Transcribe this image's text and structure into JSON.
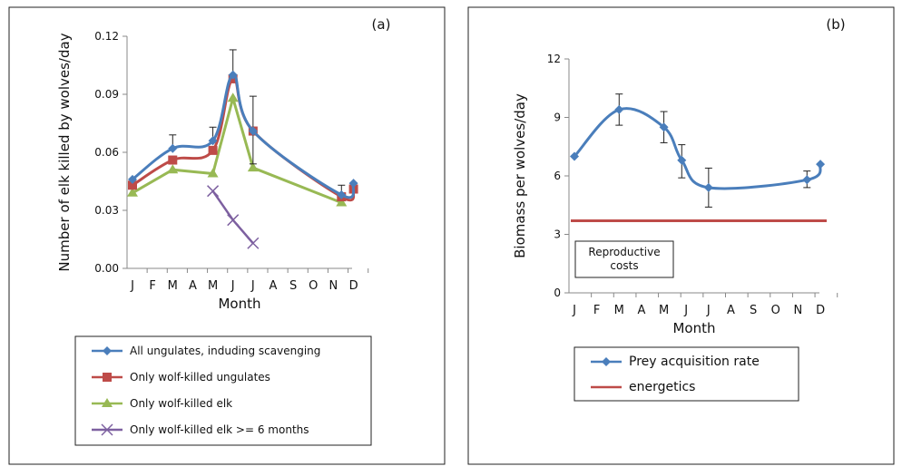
{
  "chart_data": [
    {
      "type": "line",
      "panel_label": "(a)",
      "xlabel": "Month",
      "ylabel": "Number of elk killed by wolves/day",
      "x_tick_labels": [
        "J",
        "F",
        "M",
        "A",
        "M",
        "J",
        "J",
        "A",
        "S",
        "O",
        "N",
        "D"
      ],
      "y_ticks": [
        "0.00",
        "0.03",
        "0.06",
        "0.09",
        "0.12"
      ],
      "ylim": [
        0,
        0.12
      ],
      "legend_position": "bottom",
      "series": [
        {
          "name": "All ungulates, induding scavenging",
          "color": "#4a7ebb",
          "marker": "diamond",
          "smooth": true,
          "x": [
            1,
            3,
            5,
            6,
            7,
            11.4,
            12
          ],
          "y": [
            0.046,
            0.062,
            0.066,
            0.1,
            0.071,
            0.038,
            0.044
          ],
          "error_upper": [
            null,
            0.069,
            0.073,
            0.113,
            0.089,
            0.043,
            null
          ],
          "error_lower": [
            null,
            null,
            null,
            null,
            0.054,
            null,
            null
          ]
        },
        {
          "name": "Only wolf-killed ungulates",
          "color": "#be4b48",
          "marker": "square",
          "smooth": true,
          "x": [
            1,
            3,
            5,
            6,
            7,
            11.4,
            12
          ],
          "y": [
            0.043,
            0.056,
            0.061,
            0.098,
            0.071,
            0.037,
            0.041
          ]
        },
        {
          "name": "Only wolf-killed elk",
          "color": "#98b954",
          "marker": "triangle",
          "smooth": false,
          "x": [
            1,
            3,
            5,
            6,
            7,
            11.4
          ],
          "y": [
            0.039,
            0.051,
            0.049,
            0.088,
            0.052,
            0.034
          ]
        },
        {
          "name": "Only wolf-killed elk >= 6 months",
          "color": "#7d60a0",
          "marker": "x",
          "smooth": false,
          "x": [
            5,
            6,
            7
          ],
          "y": [
            0.04,
            0.025,
            0.013
          ]
        }
      ]
    },
    {
      "type": "line",
      "panel_label": "(b)",
      "xlabel": "Month",
      "ylabel": "Biomass per wolves/day",
      "x_tick_labels": [
        "J",
        "F",
        "M",
        "A",
        "M",
        "J",
        "J",
        "A",
        "S",
        "O",
        "N",
        "D"
      ],
      "y_ticks": [
        "0",
        "3",
        "6",
        "9",
        "12"
      ],
      "ylim": [
        0,
        12
      ],
      "legend_position": "bottom",
      "annotation": "Reproductive costs",
      "series": [
        {
          "name": "Prey acquisition rate",
          "color": "#4a7ebb",
          "marker": "diamond",
          "smooth": true,
          "x": [
            1,
            3,
            5,
            5.8,
            7,
            11.4,
            12
          ],
          "y": [
            7.0,
            9.4,
            8.5,
            6.8,
            5.4,
            5.8,
            6.6
          ],
          "error_upper": [
            null,
            10.2,
            9.3,
            7.6,
            6.4,
            6.25,
            null
          ],
          "error_lower": [
            null,
            8.6,
            7.7,
            5.9,
            4.4,
            5.4,
            null
          ]
        },
        {
          "name": "energetics",
          "color": "#be4b48",
          "marker": "none",
          "constant": 3.7
        }
      ]
    }
  ]
}
